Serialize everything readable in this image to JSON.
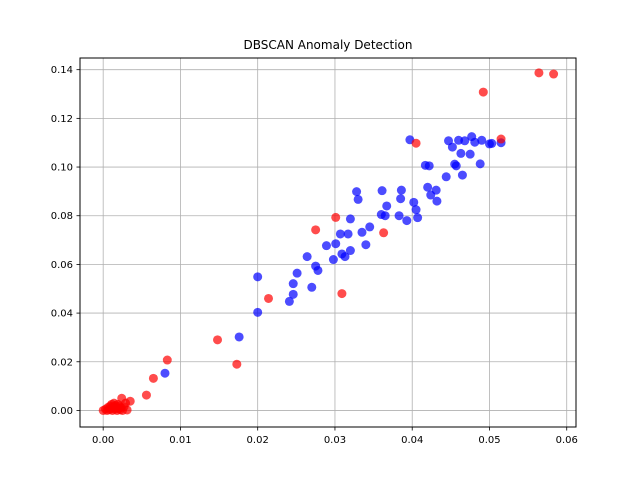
{
  "chart_data": {
    "type": "scatter",
    "title": "DBSCAN Anomaly Detection",
    "xlabel": "",
    "ylabel": "",
    "xlim": [
      -0.003,
      0.0612
    ],
    "ylim": [
      -0.0068,
      0.1448
    ],
    "xticks": [
      0.0,
      0.01,
      0.02,
      0.03,
      0.04,
      0.05,
      0.06
    ],
    "xtick_labels": [
      "0.00",
      "0.01",
      "0.02",
      "0.03",
      "0.04",
      "0.05",
      "0.06"
    ],
    "yticks": [
      0.0,
      0.02,
      0.04,
      0.06,
      0.08,
      0.1,
      0.12,
      0.14
    ],
    "ytick_labels": [
      "0.00",
      "0.02",
      "0.04",
      "0.06",
      "0.08",
      "0.10",
      "0.12",
      "0.14"
    ],
    "grid": true,
    "colors": {
      "normal": "#0000ff",
      "anomaly": "#ff0000",
      "grid": "#b0b0b0"
    },
    "series": [
      {
        "color": "#0000ff",
        "points": [
          [
            0.008,
            0.0153
          ],
          [
            0.0176,
            0.0302
          ],
          [
            0.02,
            0.0403
          ],
          [
            0.02,
            0.0549
          ],
          [
            0.0241,
            0.0448
          ],
          [
            0.0246,
            0.0477
          ],
          [
            0.0246,
            0.0521
          ],
          [
            0.0251,
            0.0564
          ],
          [
            0.0264,
            0.0632
          ],
          [
            0.027,
            0.0506
          ],
          [
            0.0275,
            0.0593
          ],
          [
            0.0278,
            0.0575
          ],
          [
            0.0289,
            0.0677
          ],
          [
            0.0298,
            0.062
          ],
          [
            0.0301,
            0.0685
          ],
          [
            0.0307,
            0.0725
          ],
          [
            0.0309,
            0.0643
          ],
          [
            0.0313,
            0.0632
          ],
          [
            0.0317,
            0.0725
          ],
          [
            0.032,
            0.0787
          ],
          [
            0.032,
            0.0657
          ],
          [
            0.0328,
            0.0899
          ],
          [
            0.033,
            0.0867
          ],
          [
            0.0335,
            0.0732
          ],
          [
            0.034,
            0.0681
          ],
          [
            0.0345,
            0.0754
          ],
          [
            0.036,
            0.0805
          ],
          [
            0.0361,
            0.0903
          ],
          [
            0.0365,
            0.08
          ],
          [
            0.0367,
            0.084
          ],
          [
            0.0383,
            0.08
          ],
          [
            0.0385,
            0.087
          ],
          [
            0.0386,
            0.0905
          ],
          [
            0.0393,
            0.078
          ],
          [
            0.0397,
            0.1112
          ],
          [
            0.0402,
            0.0855
          ],
          [
            0.0405,
            0.0825
          ],
          [
            0.0407,
            0.0792
          ],
          [
            0.0417,
            0.1007
          ],
          [
            0.042,
            0.0917
          ],
          [
            0.0422,
            0.1005
          ],
          [
            0.0424,
            0.0885
          ],
          [
            0.0431,
            0.0905
          ],
          [
            0.0432,
            0.086
          ],
          [
            0.0444,
            0.096
          ],
          [
            0.0447,
            0.1108
          ],
          [
            0.0452,
            0.1082
          ],
          [
            0.0455,
            0.1012
          ],
          [
            0.0457,
            0.1005
          ],
          [
            0.046,
            0.111
          ],
          [
            0.0463,
            0.1056
          ],
          [
            0.0465,
            0.0967
          ],
          [
            0.0468,
            0.1108
          ],
          [
            0.0475,
            0.1053
          ],
          [
            0.0477,
            0.1125
          ],
          [
            0.0481,
            0.1102
          ],
          [
            0.0488,
            0.1013
          ],
          [
            0.049,
            0.111
          ],
          [
            0.05,
            0.1095
          ],
          [
            0.0503,
            0.1097
          ],
          [
            0.0515,
            0.11
          ]
        ]
      },
      {
        "color": "#ff0000",
        "points": [
          [
            0.0,
            0.0
          ],
          [
            0.0003,
            0.0005
          ],
          [
            0.0005,
            0.0
          ],
          [
            0.0006,
            0.0012
          ],
          [
            0.0008,
            0.0003
          ],
          [
            0.0009,
            0.0018
          ],
          [
            0.001,
            0.0008
          ],
          [
            0.0011,
            0.0025
          ],
          [
            0.0012,
            0.0
          ],
          [
            0.0013,
            0.0015
          ],
          [
            0.0014,
            0.003
          ],
          [
            0.0015,
            0.0005
          ],
          [
            0.0016,
            0.002
          ],
          [
            0.0017,
            0.001
          ],
          [
            0.0018,
            0.0
          ],
          [
            0.0019,
            0.0025
          ],
          [
            0.002,
            0.0008
          ],
          [
            0.0021,
            0.0018
          ],
          [
            0.0022,
            0.0003
          ],
          [
            0.0023,
            0.0012
          ],
          [
            0.0024,
            0.005
          ],
          [
            0.0025,
            0.0
          ],
          [
            0.0027,
            0.0015
          ],
          [
            0.0029,
            0.003
          ],
          [
            0.0031,
            0.0002
          ],
          [
            0.0035,
            0.0038
          ],
          [
            0.0056,
            0.0063
          ],
          [
            0.0065,
            0.0132
          ],
          [
            0.0083,
            0.0207
          ],
          [
            0.0148,
            0.029
          ],
          [
            0.0173,
            0.019
          ],
          [
            0.0214,
            0.046
          ],
          [
            0.0275,
            0.0742
          ],
          [
            0.0301,
            0.0793
          ],
          [
            0.0309,
            0.048
          ],
          [
            0.0363,
            0.073
          ],
          [
            0.0405,
            0.1098
          ],
          [
            0.0492,
            0.1308
          ],
          [
            0.0515,
            0.1115
          ],
          [
            0.0564,
            0.1387
          ],
          [
            0.0583,
            0.1382
          ]
        ]
      }
    ]
  }
}
